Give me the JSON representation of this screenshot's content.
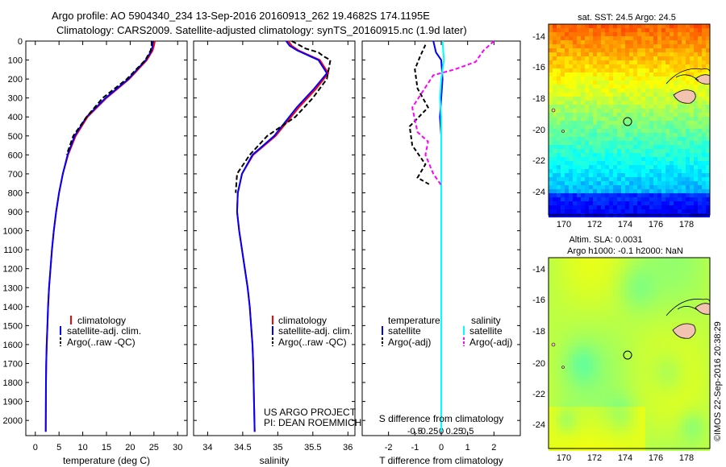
{
  "header": {
    "line1": "Argo profile: AO 5904340_234 13-Sep-2016 20160913_262 19.4682S 174.1195E",
    "line2": "Climatology: CARS2009. Satellite-adjusted climatology: synTS_20160915.nc (1.9d later)"
  },
  "panels": {
    "temperature": {
      "xlabel": "temperature (deg C)",
      "xticks": [
        0,
        5,
        10,
        15,
        20,
        25,
        30
      ],
      "xlim": [
        -2,
        32
      ],
      "legend": [
        "climatology",
        "satellite-adj. clim.",
        "Argo(..raw -QC)"
      ]
    },
    "salinity": {
      "xlabel": "salinity",
      "xticks": [
        34,
        34.5,
        35,
        35.5,
        36
      ],
      "xlim": [
        33.8,
        36.1
      ],
      "legend": [
        "climatology",
        "satellite-adj. clim.",
        "Argo(..raw -QC)"
      ],
      "footer1": "US ARGO PROJECT",
      "footer2": "PI: DEAN ROEMMICH"
    },
    "difference": {
      "top_label": "S difference from climatology",
      "bottom_label": "T difference from climatology",
      "s_ticks": [
        "-0.5",
        "-0.25",
        "0",
        "0.25",
        "0.5"
      ],
      "t_ticks": [
        -2,
        -1,
        0,
        1,
        2
      ],
      "xlim": [
        -3,
        3
      ],
      "legend_temp_title": "temperature",
      "legend_sal_title": "salinity",
      "legend_temp": [
        "satellite",
        "Argo(-adj)"
      ],
      "legend_sal": [
        "satellite",
        "Argo(-adj)"
      ]
    },
    "depth_ticks": [
      0,
      100,
      200,
      300,
      400,
      500,
      600,
      700,
      800,
      900,
      1000,
      1100,
      1200,
      1300,
      1400,
      1500,
      1600,
      1700,
      1800,
      1900,
      2000
    ],
    "depth_range": [
      0,
      2080
    ]
  },
  "maps": {
    "sst_title": "sat. SST: 24.5  Argo: 24.5",
    "sla_title1": "Altim. SLA: 0.0031",
    "sla_title2": "Argo h1000: -0.1  h2000: NaN",
    "lat_ticks": [
      "-14",
      "-16",
      "-18",
      "-20",
      "-22",
      "-24"
    ],
    "lon_ticks": [
      "170",
      "172",
      "174",
      "176",
      "178"
    ],
    "float_position": {
      "lon": 174.12,
      "lat": -19.47
    }
  },
  "credit": "©IMOS 22-Sep-2016 20:38:29",
  "colors": {
    "climatology": "#ff0000",
    "satellite": "#0000ff",
    "argo": "#000000",
    "sal_satellite": "#00ffff",
    "sal_argo": "#ff00ff",
    "island": "#f2c3b0"
  },
  "chart_data": [
    {
      "type": "line",
      "title": "",
      "xlabel": "temperature (deg C)",
      "ylabel": "",
      "xlim": [
        -2,
        32
      ],
      "ylim": [
        2080,
        0
      ],
      "series": [
        {
          "name": "climatology",
          "x": [
            25.2,
            25.0,
            24.7,
            23.5,
            19.8,
            15.0,
            11.0,
            8.5,
            6.9,
            5.8,
            5.0,
            4.4,
            3.9,
            3.5,
            3.2,
            2.9,
            2.7,
            2.55,
            2.4,
            2.3,
            2.25,
            2.2
          ],
          "y": [
            0,
            25,
            50,
            100,
            200,
            300,
            400,
            500,
            600,
            700,
            800,
            900,
            1000,
            1100,
            1200,
            1300,
            1400,
            1500,
            1600,
            1700,
            1800,
            2060
          ]
        },
        {
          "name": "satellite-adj. clim.",
          "x": [
            24.8,
            24.7,
            24.5,
            23.3,
            19.6,
            14.8,
            10.8,
            8.3,
            6.8,
            5.8,
            5.0,
            4.4,
            3.9,
            3.5,
            3.2,
            2.9,
            2.7,
            2.55,
            2.4,
            2.3,
            2.25,
            2.2
          ],
          "y": [
            0,
            25,
            50,
            100,
            200,
            300,
            400,
            500,
            600,
            700,
            800,
            900,
            1000,
            1100,
            1200,
            1300,
            1400,
            1500,
            1600,
            1700,
            1800,
            2060
          ]
        },
        {
          "name": "Argo(..raw -QC)",
          "x": [
            24.5,
            24.5,
            24.3,
            23.2,
            19.3,
            14.2,
            10.8,
            8.0,
            6.6
          ],
          "y": [
            0,
            25,
            50,
            100,
            200,
            300,
            400,
            500,
            600
          ]
        }
      ]
    },
    {
      "type": "line",
      "title": "",
      "xlabel": "salinity",
      "ylabel": "",
      "xlim": [
        33.8,
        36.1
      ],
      "ylim": [
        2080,
        0
      ],
      "series": [
        {
          "name": "climatology",
          "x": [
            35.15,
            35.2,
            35.3,
            35.6,
            35.72,
            35.55,
            35.3,
            34.97,
            34.65,
            34.49,
            34.43,
            34.42,
            34.45,
            34.49,
            34.53,
            34.57,
            34.6,
            34.62,
            34.64,
            34.65,
            34.67
          ],
          "y": [
            0,
            25,
            50,
            100,
            170,
            250,
            350,
            500,
            600,
            700,
            800,
            900,
            1000,
            1100,
            1200,
            1300,
            1400,
            1500,
            1600,
            1700,
            2060
          ]
        },
        {
          "name": "satellite-adj. clim.",
          "x": [
            35.12,
            35.17,
            35.28,
            35.58,
            35.7,
            35.52,
            35.27,
            34.95,
            34.64,
            34.49,
            34.43,
            34.42,
            34.45,
            34.49,
            34.53,
            34.57,
            34.6,
            34.62,
            34.64,
            34.65,
            34.67
          ],
          "y": [
            0,
            25,
            50,
            100,
            170,
            250,
            350,
            500,
            600,
            700,
            800,
            900,
            1000,
            1100,
            1200,
            1300,
            1400,
            1500,
            1600,
            1700,
            2060
          ]
        },
        {
          "name": "Argo(..raw -QC)",
          "x": [
            35.2,
            35.4,
            35.58,
            35.65,
            35.75,
            35.7,
            35.5,
            35.25,
            34.85,
            34.6,
            34.42,
            34.4
          ],
          "y": [
            0,
            40,
            60,
            80,
            100,
            200,
            300,
            400,
            500,
            600,
            700,
            800
          ]
        }
      ]
    },
    {
      "type": "line",
      "title": "",
      "xlabel": "T difference from climatology",
      "ylabel": "",
      "xlim": [
        -3,
        3
      ],
      "ylim": [
        2080,
        0
      ],
      "series": [
        {
          "name": "temperature satellite",
          "x": [
            -0.3,
            -0.2,
            0,
            0.05,
            0,
            -0.05,
            0,
            0,
            0
          ],
          "y": [
            0,
            60,
            100,
            200,
            300,
            400,
            500,
            700,
            2060
          ]
        },
        {
          "name": "temperature Argo(-adj)",
          "x": [
            -0.6,
            -0.8,
            -1.0,
            -0.9,
            -0.5,
            -1.2,
            -1.1,
            -0.6,
            -0.9,
            -0.4
          ],
          "y": [
            20,
            80,
            150,
            250,
            350,
            450,
            550,
            650,
            720,
            760
          ]
        },
        {
          "name": "salinity satellite",
          "x": [
            0.05,
            0.1,
            0,
            -0.05,
            0,
            0,
            0,
            0
          ],
          "y": [
            0,
            100,
            200,
            300,
            400,
            600,
            1000,
            2060
          ]
        },
        {
          "name": "salinity Argo(-adj)",
          "x": [
            2.0,
            1.6,
            1.3,
            0.5,
            -0.3,
            -1.1,
            -0.9,
            -0.5,
            -0.6,
            -0.3,
            0
          ],
          "y": [
            0,
            50,
            110,
            150,
            180,
            350,
            480,
            530,
            600,
            700,
            760
          ]
        }
      ]
    }
  ]
}
